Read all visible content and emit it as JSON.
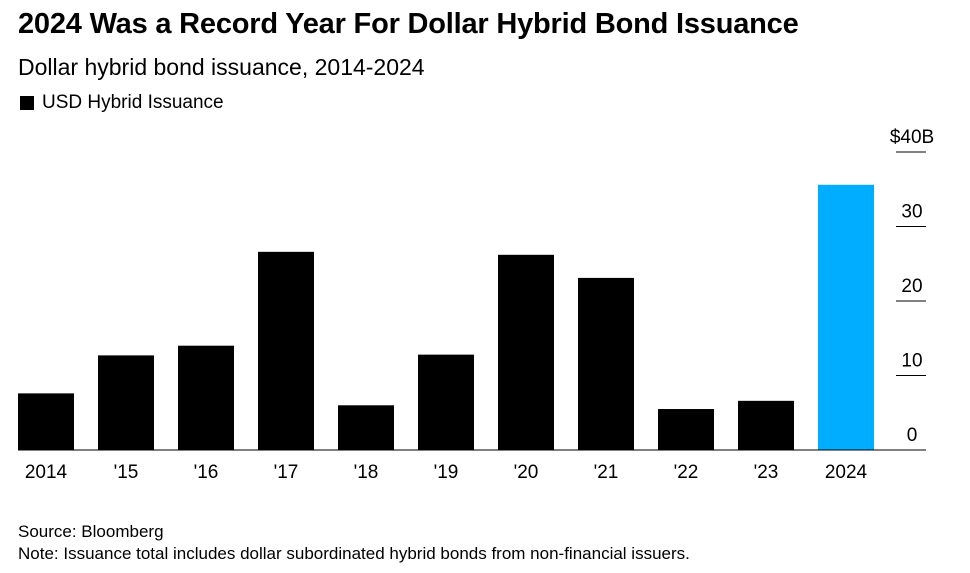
{
  "chart_data": {
    "type": "bar",
    "title": "2024 Was a Record Year For Dollar Hybrid Bond Issuance",
    "subtitle": "Dollar hybrid bond issuance, 2014-2024",
    "categories": [
      "2014",
      "'15",
      "'16",
      "'17",
      "'18",
      "'19",
      "'20",
      "'21",
      "'22",
      "'23",
      "2024"
    ],
    "series": [
      {
        "name": "USD Hybrid Issuance",
        "values": [
          7.6,
          12.7,
          14.0,
          26.6,
          6.0,
          12.8,
          26.2,
          23.1,
          5.5,
          6.6,
          35.6
        ],
        "color": "#000000",
        "highlight_color": "#00adff",
        "highlight_index": 10
      }
    ],
    "ylim": [
      0,
      40
    ],
    "yticks": [
      0,
      10,
      20,
      30,
      40
    ],
    "ytick_labels": [
      "0",
      "10",
      "20",
      "30",
      "$40B"
    ],
    "y_axis_side": "right",
    "grid": false,
    "legend_position": "top-left"
  },
  "footer": {
    "source": "Source: Bloomberg",
    "note": "Note: Issuance total includes dollar subordinated hybrid bonds from non-financial issuers."
  }
}
